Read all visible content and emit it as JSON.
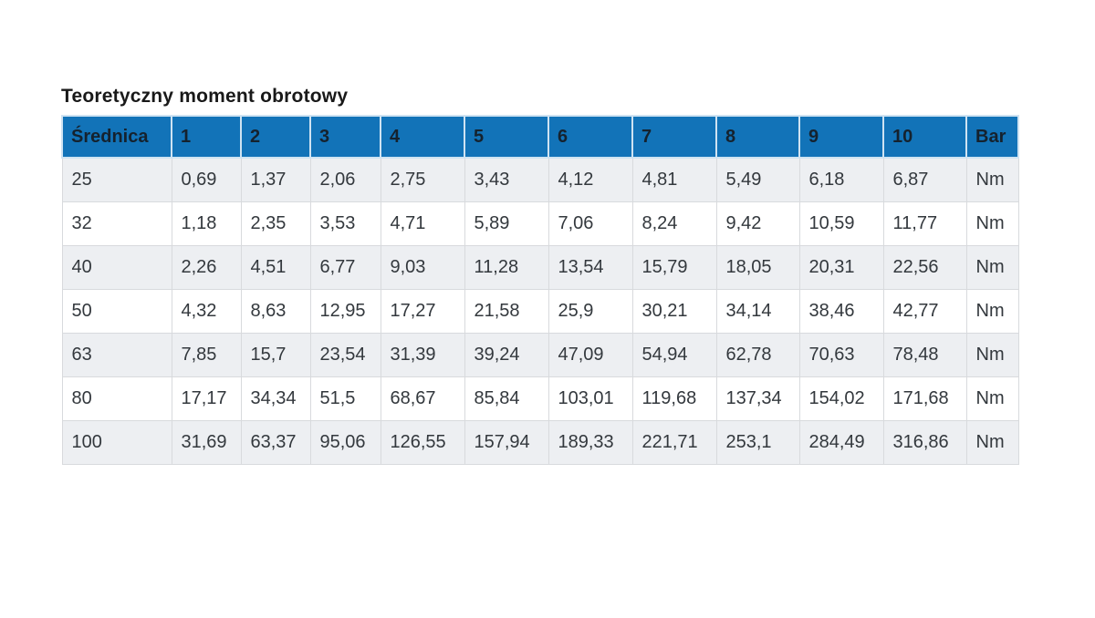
{
  "title": "Teoretyczny moment obrotowy",
  "table": {
    "columns": [
      "Średnica",
      "1",
      "2",
      "3",
      "4",
      "5",
      "6",
      "7",
      "8",
      "9",
      "10",
      "Bar"
    ],
    "rows": [
      {
        "diameter": "25",
        "values": [
          "0,69",
          "1,37",
          "2,06",
          "2,75",
          "3,43",
          "4,12",
          "4,81",
          "5,49",
          "6,18",
          "6,87"
        ],
        "unit": "Nm"
      },
      {
        "diameter": "32",
        "values": [
          "1,18",
          "2,35",
          "3,53",
          "4,71",
          "5,89",
          "7,06",
          "8,24",
          "9,42",
          "10,59",
          "11,77"
        ],
        "unit": "Nm"
      },
      {
        "diameter": "40",
        "values": [
          "2,26",
          "4,51",
          "6,77",
          "9,03",
          "11,28",
          "13,54",
          "15,79",
          "18,05",
          "20,31",
          "22,56"
        ],
        "unit": "Nm"
      },
      {
        "diameter": "50",
        "values": [
          "4,32",
          "8,63",
          "12,95",
          "17,27",
          "21,58",
          "25,9",
          "30,21",
          "34,14",
          "38,46",
          "42,77"
        ],
        "unit": "Nm"
      },
      {
        "diameter": "63",
        "values": [
          "7,85",
          "15,7",
          "23,54",
          "31,39",
          "39,24",
          "47,09",
          "54,94",
          "62,78",
          "70,63",
          "78,48"
        ],
        "unit": "Nm"
      },
      {
        "diameter": "80",
        "values": [
          "17,17",
          "34,34",
          "51,5",
          "68,67",
          "85,84",
          "103,01",
          "119,68",
          "137,34",
          "154,02",
          "171,68"
        ],
        "unit": "Nm"
      },
      {
        "diameter": "100",
        "values": [
          "31,69",
          "63,37",
          "95,06",
          "126,55",
          "157,94",
          "189,33",
          "221,71",
          "253,1",
          "284,49",
          "316,86"
        ],
        "unit": "Nm"
      }
    ]
  },
  "colors": {
    "header_bg": "#1273b8",
    "header_border": "#cfe3f2",
    "header_text": "#15222e",
    "body_border": "#d8dadd",
    "body_text": "#33383d",
    "stripe_bg": "#edeff2",
    "title_color": "#191919"
  }
}
